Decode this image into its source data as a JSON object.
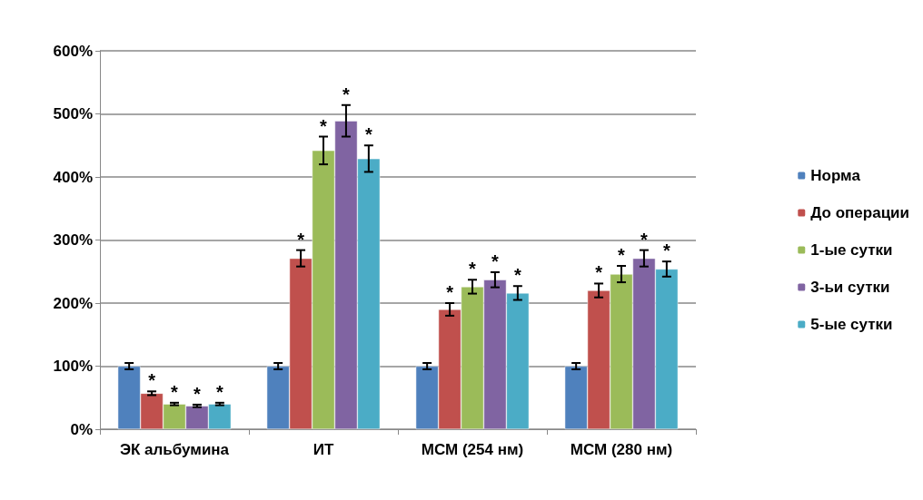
{
  "chart_data": {
    "type": "bar",
    "categories": [
      "ЭК альбумина",
      "ИТ",
      "МСМ (254 нм)",
      "МСМ (280 нм)"
    ],
    "series": [
      {
        "name": "Норма",
        "color": "#4f81bd",
        "values": [
          100,
          100,
          100,
          100
        ],
        "errors": [
          5,
          5,
          5,
          5
        ]
      },
      {
        "name": "До операции",
        "color": "#c0504d",
        "values": [
          57,
          271,
          190,
          220
        ],
        "errors": [
          3,
          13,
          10,
          11
        ],
        "value_labels": [
          "*",
          "*",
          "*",
          "*"
        ]
      },
      {
        "name": "1-ые сутки",
        "color": "#9bbb59",
        "values": [
          40,
          442,
          226,
          246
        ],
        "errors": [
          2,
          22,
          11,
          13
        ],
        "value_labels": [
          "*",
          "*",
          "*",
          "*"
        ]
      },
      {
        "name": "3-ьи сутки",
        "color": "#8064a2",
        "values": [
          37,
          489,
          237,
          271
        ],
        "errors": [
          2,
          25,
          12,
          13
        ],
        "value_labels": [
          "*",
          "*",
          "*",
          "*"
        ]
      },
      {
        "name": "5-ые сутки",
        "color": "#4bacc6",
        "values": [
          40,
          429,
          216,
          254
        ],
        "errors": [
          2,
          21,
          11,
          12
        ],
        "value_labels": [
          "*",
          "*",
          "*",
          "*"
        ]
      }
    ],
    "ylim": [
      0,
      600
    ],
    "yticks": [
      {
        "value": 0,
        "label": "0%"
      },
      {
        "value": 100,
        "label": "100%"
      },
      {
        "value": 200,
        "label": "200%"
      },
      {
        "value": 300,
        "label": "300%"
      },
      {
        "value": 400,
        "label": "400%"
      },
      {
        "value": 500,
        "label": "500%"
      },
      {
        "value": 600,
        "label": "600%"
      }
    ],
    "grid": "y",
    "legend": "right"
  }
}
